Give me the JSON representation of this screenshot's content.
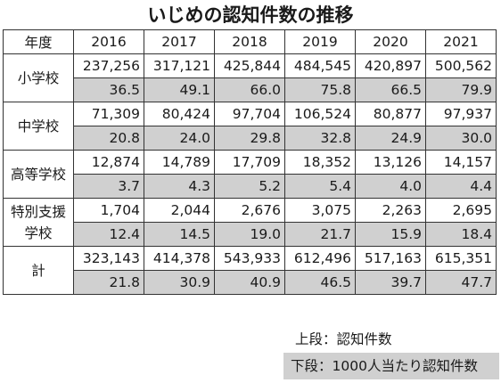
{
  "title": "いじめの認知件数の推移",
  "table": {
    "corner_label": "年度",
    "years": [
      "2016",
      "2017",
      "2018",
      "2019",
      "2020",
      "2021"
    ],
    "groups": [
      {
        "label": "小学校",
        "counts": [
          "237,256",
          "317,121",
          "425,844",
          "484,545",
          "420,897",
          "500,562"
        ],
        "rates": [
          "36.5",
          "49.1",
          "66.0",
          "75.8",
          "66.5",
          "79.9"
        ]
      },
      {
        "label": "中学校",
        "counts": [
          "71,309",
          "80,424",
          "97,704",
          "106,524",
          "80,877",
          "97,937"
        ],
        "rates": [
          "20.8",
          "24.0",
          "29.8",
          "32.8",
          "24.9",
          "30.0"
        ]
      },
      {
        "label": "高等学校",
        "counts": [
          "12,874",
          "14,789",
          "17,709",
          "18,352",
          "13,126",
          "14,157"
        ],
        "rates": [
          "3.7",
          "4.3",
          "5.2",
          "5.4",
          "4.0",
          "4.4"
        ]
      },
      {
        "label_lines": [
          "特別支援",
          "学校"
        ],
        "counts": [
          "1,704",
          "2,044",
          "2,676",
          "3,075",
          "2,263",
          "2,695"
        ],
        "rates": [
          "12.4",
          "14.5",
          "19.0",
          "21.7",
          "15.9",
          "18.4"
        ]
      },
      {
        "label": "計",
        "counts": [
          "323,143",
          "414,378",
          "543,933",
          "612,496",
          "517,163",
          "615,351"
        ],
        "rates": [
          "21.8",
          "30.9",
          "40.9",
          "46.5",
          "39.7",
          "47.7"
        ]
      }
    ]
  },
  "legend": {
    "upper": "上段：認知件数",
    "lower": "下段：1000人当たり認知件数"
  }
}
